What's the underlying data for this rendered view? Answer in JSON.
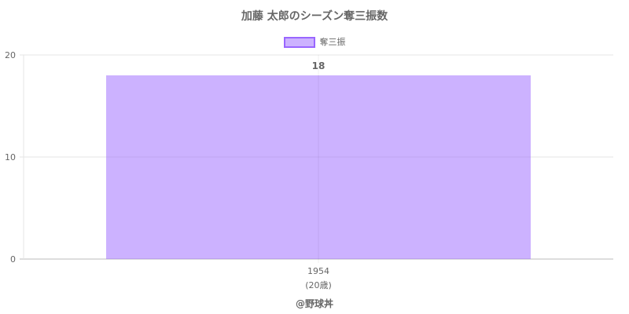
{
  "title": "加藤 太郎のシーズン奪三振数",
  "credit": "@野球丼",
  "chart_data": {
    "type": "bar",
    "categories": [
      "1954"
    ],
    "sublabels": [
      "(20歳)"
    ],
    "series": [
      {
        "name": "奪三振",
        "values": [
          18
        ],
        "color": "#9966ff"
      }
    ],
    "ylim": [
      0,
      20
    ],
    "yticks": [
      0,
      10,
      20
    ],
    "grid": true,
    "legend": "top",
    "data_labels": [
      "18"
    ]
  }
}
